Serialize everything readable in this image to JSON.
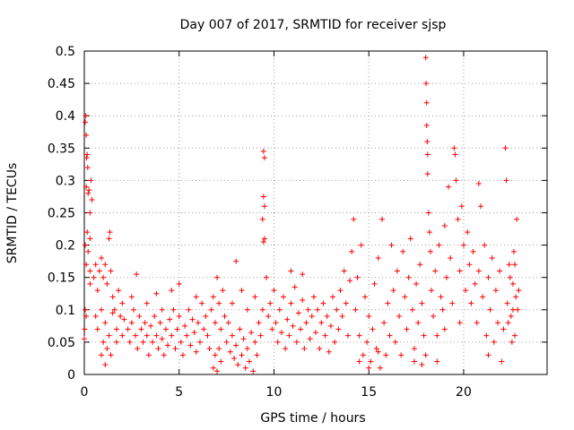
{
  "chart_data": {
    "type": "scatter",
    "title": "Day 007 of 2017, SRMTID for receiver sjsp",
    "xlabel": "GPS time / hours",
    "ylabel": "SRMTID / TECUs",
    "xlim": [
      0,
      24.4
    ],
    "ylim": [
      0,
      0.5
    ],
    "x_ticks": [
      0,
      5,
      10,
      15,
      20
    ],
    "x_tick_labels": [
      "0",
      "5",
      "10",
      "15",
      "20"
    ],
    "y_ticks": [
      0,
      0.05,
      0.1,
      0.15,
      0.2,
      0.25,
      0.3,
      0.35,
      0.4,
      0.45,
      0.5
    ],
    "y_tick_labels": [
      "0",
      "0.05",
      "0.1",
      "0.15",
      "0.2",
      "0.25",
      "0.3",
      "0.35",
      "0.4",
      "0.45",
      "0.5"
    ],
    "grid": true,
    "marker": "+",
    "color": "#ff0000",
    "series": [
      {
        "name": "SRMTID",
        "points": [
          [
            0.05,
            0.39
          ],
          [
            0.08,
            0.4
          ],
          [
            0.1,
            0.37
          ],
          [
            0.12,
            0.335
          ],
          [
            0.15,
            0.34
          ],
          [
            0.18,
            0.32
          ],
          [
            0.1,
            0.29
          ],
          [
            0.2,
            0.28
          ],
          [
            0.25,
            0.285
          ],
          [
            0.3,
            0.25
          ],
          [
            0.35,
            0.3
          ],
          [
            0.4,
            0.27
          ],
          [
            0.15,
            0.22
          ],
          [
            0.05,
            0.2
          ],
          [
            0.3,
            0.21
          ],
          [
            0.2,
            0.19
          ],
          [
            0.1,
            0.17
          ],
          [
            0.3,
            0.16
          ],
          [
            0.05,
            0.1
          ],
          [
            0.1,
            0.09
          ],
          [
            0.0,
            0.055
          ],
          [
            0.02,
            0.07
          ],
          [
            0.3,
            0.14
          ],
          [
            0.5,
            0.15
          ],
          [
            0.6,
            0.17
          ],
          [
            0.7,
            0.13
          ],
          [
            0.8,
            0.16
          ],
          [
            0.9,
            0.18
          ],
          [
            1.0,
            0.15
          ],
          [
            1.1,
            0.17
          ],
          [
            1.2,
            0.14
          ],
          [
            1.3,
            0.21
          ],
          [
            1.35,
            0.22
          ],
          [
            1.4,
            0.16
          ],
          [
            1.5,
            0.12
          ],
          [
            0.6,
            0.09
          ],
          [
            0.7,
            0.07
          ],
          [
            0.9,
            0.1
          ],
          [
            1.0,
            0.05
          ],
          [
            1.1,
            0.08
          ],
          [
            1.2,
            0.04
          ],
          [
            1.3,
            0.06
          ],
          [
            1.4,
            0.03
          ],
          [
            1.6,
            0.1
          ],
          [
            1.7,
            0.07
          ],
          [
            1.8,
            0.13
          ],
          [
            1.9,
            0.09
          ],
          [
            2.0,
            0.11
          ],
          [
            0.9,
            0.03
          ],
          [
            1.1,
            0.015
          ],
          [
            1.5,
            0.095
          ],
          [
            1.7,
            0.05
          ],
          [
            2.0,
            0.06
          ],
          [
            2.1,
            0.085
          ],
          [
            2.3,
            0.07
          ],
          [
            2.4,
            0.05
          ],
          [
            2.5,
            0.08
          ],
          [
            2.6,
            0.1
          ],
          [
            2.7,
            0.06
          ],
          [
            2.8,
            0.04
          ],
          [
            2.9,
            0.09
          ],
          [
            3.0,
            0.07
          ],
          [
            3.1,
            0.05
          ],
          [
            3.2,
            0.08
          ],
          [
            3.3,
            0.06
          ],
          [
            3.4,
            0.03
          ],
          [
            3.5,
            0.075
          ],
          [
            3.6,
            0.05
          ],
          [
            3.7,
            0.09
          ],
          [
            3.8,
            0.06
          ],
          [
            3.9,
            0.04
          ],
          [
            4.0,
            0.08
          ],
          [
            4.1,
            0.055
          ],
          [
            4.2,
            0.03
          ],
          [
            4.3,
            0.07
          ],
          [
            2.75,
            0.155
          ],
          [
            2.5,
            0.12
          ],
          [
            3.3,
            0.11
          ],
          [
            3.8,
            0.125
          ],
          [
            4.1,
            0.1
          ],
          [
            4.4,
            0.045
          ],
          [
            4.5,
            0.085
          ],
          [
            4.6,
            0.06
          ],
          [
            4.7,
            0.1
          ],
          [
            4.8,
            0.04
          ],
          [
            4.9,
            0.07
          ],
          [
            5.0,
            0.09
          ],
          [
            5.1,
            0.05
          ],
          [
            5.2,
            0.03
          ],
          [
            5.3,
            0.075
          ],
          [
            5.4,
            0.06
          ],
          [
            5.5,
            0.1
          ],
          [
            5.6,
            0.045
          ],
          [
            5.7,
            0.085
          ],
          [
            5.8,
            0.065
          ],
          [
            5.9,
            0.035
          ],
          [
            6.0,
            0.08
          ],
          [
            6.1,
            0.05
          ],
          [
            6.2,
            0.11
          ],
          [
            6.3,
            0.07
          ],
          [
            4.6,
            0.13
          ],
          [
            5.0,
            0.14
          ],
          [
            5.9,
            0.12
          ],
          [
            6.4,
            0.09
          ],
          [
            6.5,
            0.06
          ],
          [
            6.6,
            0.04
          ],
          [
            6.7,
            0.1
          ],
          [
            6.8,
            0.12
          ],
          [
            6.9,
            0.08
          ],
          [
            7.0,
            0.15
          ],
          [
            7.1,
            0.11
          ],
          [
            7.2,
            0.07
          ],
          [
            7.3,
            0.13
          ],
          [
            7.4,
            0.09
          ],
          [
            6.8,
            0.01
          ],
          [
            6.9,
            0.03
          ],
          [
            7.0,
            0.005
          ],
          [
            7.1,
            0.04
          ],
          [
            7.2,
            0.02
          ],
          [
            7.5,
            0.05
          ],
          [
            7.6,
            0.08
          ],
          [
            7.7,
            0.035
          ],
          [
            7.8,
            0.06
          ],
          [
            7.9,
            0.025
          ],
          [
            8.0,
            0.045
          ],
          [
            8.1,
            0.015
          ],
          [
            8.2,
            0.07
          ],
          [
            8.3,
            0.03
          ],
          [
            8.4,
            0.055
          ],
          [
            8.5,
            0.01
          ],
          [
            8.6,
            0.04
          ],
          [
            8.7,
            0.02
          ],
          [
            8.8,
            0.065
          ],
          [
            8.9,
            0.005
          ],
          [
            9.0,
            0.05
          ],
          [
            9.1,
            0.03
          ],
          [
            9.2,
            0.08
          ],
          [
            7.8,
            0.11
          ],
          [
            8.0,
            0.175
          ],
          [
            8.3,
            0.13
          ],
          [
            8.6,
            0.1
          ],
          [
            9.0,
            0.12
          ],
          [
            9.3,
            0.06
          ],
          [
            9.4,
            0.1
          ],
          [
            9.45,
            0.345
          ],
          [
            9.5,
            0.335
          ],
          [
            9.45,
            0.275
          ],
          [
            9.5,
            0.26
          ],
          [
            9.4,
            0.24
          ],
          [
            9.45,
            0.205
          ],
          [
            9.5,
            0.21
          ],
          [
            9.6,
            0.15
          ],
          [
            9.7,
            0.09
          ],
          [
            9.8,
            0.11
          ],
          [
            9.9,
            0.07
          ],
          [
            10.0,
            0.13
          ],
          [
            10.1,
            0.08
          ],
          [
            10.2,
            0.05
          ],
          [
            10.3,
            0.1
          ],
          [
            10.4,
            0.065
          ],
          [
            10.5,
            0.12
          ],
          [
            10.6,
            0.04
          ],
          [
            10.7,
            0.085
          ],
          [
            10.8,
            0.06
          ],
          [
            10.9,
            0.11
          ],
          [
            11.0,
            0.075
          ],
          [
            11.1,
            0.135
          ],
          [
            11.2,
            0.05
          ],
          [
            11.3,
            0.095
          ],
          [
            11.4,
            0.07
          ],
          [
            11.5,
            0.115
          ],
          [
            11.6,
            0.04
          ],
          [
            11.7,
            0.08
          ],
          [
            11.8,
            0.1
          ],
          [
            11.9,
            0.055
          ],
          [
            10.9,
            0.16
          ],
          [
            11.5,
            0.155
          ],
          [
            12.0,
            0.09
          ],
          [
            12.1,
            0.12
          ],
          [
            12.2,
            0.065
          ],
          [
            12.3,
            0.1
          ],
          [
            12.4,
            0.04
          ],
          [
            12.5,
            0.08
          ],
          [
            12.6,
            0.11
          ],
          [
            12.7,
            0.06
          ],
          [
            12.8,
            0.09
          ],
          [
            12.9,
            0.035
          ],
          [
            13.0,
            0.075
          ],
          [
            13.1,
            0.12
          ],
          [
            13.2,
            0.05
          ],
          [
            13.3,
            0.1
          ],
          [
            13.4,
            0.07
          ],
          [
            13.5,
            0.13
          ],
          [
            13.6,
            0.09
          ],
          [
            13.7,
            0.16
          ],
          [
            13.8,
            0.11
          ],
          [
            13.9,
            0.06
          ],
          [
            14.0,
            0.145
          ],
          [
            14.1,
            0.19
          ],
          [
            14.2,
            0.24
          ],
          [
            14.3,
            0.1
          ],
          [
            14.4,
            0.15
          ],
          [
            14.5,
            0.06
          ],
          [
            14.6,
            0.2
          ],
          [
            14.7,
            0.03
          ],
          [
            14.8,
            0.12
          ],
          [
            14.9,
            0.05
          ],
          [
            15.0,
            0.09
          ],
          [
            15.1,
            0.02
          ],
          [
            15.2,
            0.07
          ],
          [
            15.3,
            0.14
          ],
          [
            15.4,
            0.04
          ],
          [
            15.5,
            0.18
          ],
          [
            15.6,
            0.01
          ],
          [
            15.7,
            0.24
          ],
          [
            15.8,
            0.08
          ],
          [
            15.9,
            0.03
          ],
          [
            16.0,
            0.11
          ],
          [
            16.1,
            0.06
          ],
          [
            16.2,
            0.2
          ],
          [
            16.3,
            0.13
          ],
          [
            16.4,
            0.05
          ],
          [
            16.5,
            0.16
          ],
          [
            16.6,
            0.09
          ],
          [
            16.7,
            0.03
          ],
          [
            14.5,
            0.02
          ],
          [
            15.0,
            0.01
          ],
          [
            15.5,
            0.035
          ],
          [
            16.8,
            0.19
          ],
          [
            16.9,
            0.12
          ],
          [
            17.0,
            0.07
          ],
          [
            17.1,
            0.15
          ],
          [
            17.2,
            0.21
          ],
          [
            17.3,
            0.1
          ],
          [
            17.4,
            0.04
          ],
          [
            17.5,
            0.14
          ],
          [
            17.6,
            0.08
          ],
          [
            17.7,
            0.17
          ],
          [
            17.8,
            0.11
          ],
          [
            17.9,
            0.06
          ],
          [
            18.0,
            0.49
          ],
          [
            18.02,
            0.45
          ],
          [
            18.05,
            0.42
          ],
          [
            18.05,
            0.385
          ],
          [
            18.08,
            0.36
          ],
          [
            18.1,
            0.34
          ],
          [
            18.1,
            0.31
          ],
          [
            18.15,
            0.25
          ],
          [
            18.2,
            0.22
          ],
          [
            18.25,
            0.19
          ],
          [
            17.4,
            0.02
          ],
          [
            17.8,
            0.015
          ],
          [
            18.0,
            0.03
          ],
          [
            18.3,
            0.13
          ],
          [
            18.4,
            0.09
          ],
          [
            18.5,
            0.16
          ],
          [
            18.6,
            0.06
          ],
          [
            18.7,
            0.2
          ],
          [
            18.8,
            0.12
          ],
          [
            18.9,
            0.1
          ],
          [
            19.0,
            0.23
          ],
          [
            19.1,
            0.15
          ],
          [
            19.2,
            0.29
          ],
          [
            19.3,
            0.18
          ],
          [
            19.4,
            0.11
          ],
          [
            19.5,
            0.35
          ],
          [
            19.55,
            0.34
          ],
          [
            19.6,
            0.3
          ],
          [
            19.7,
            0.24
          ],
          [
            19.8,
            0.16
          ],
          [
            19.9,
            0.26
          ],
          [
            20.0,
            0.2
          ],
          [
            20.1,
            0.13
          ],
          [
            20.2,
            0.22
          ],
          [
            20.3,
            0.17
          ],
          [
            18.6,
            0.02
          ],
          [
            19.0,
            0.07
          ],
          [
            19.8,
            0.08
          ],
          [
            20.4,
            0.11
          ],
          [
            20.5,
            0.19
          ],
          [
            20.6,
            0.14
          ],
          [
            20.7,
            0.08
          ],
          [
            20.8,
            0.16
          ],
          [
            20.9,
            0.26
          ],
          [
            21.0,
            0.12
          ],
          [
            21.1,
            0.2
          ],
          [
            21.2,
            0.06
          ],
          [
            21.3,
            0.15
          ],
          [
            21.4,
            0.1
          ],
          [
            21.5,
            0.18
          ],
          [
            21.6,
            0.05
          ],
          [
            21.7,
            0.13
          ],
          [
            21.8,
            0.08
          ],
          [
            21.9,
            0.16
          ],
          [
            22.0,
            0.02
          ],
          [
            22.1,
            0.07
          ],
          [
            22.2,
            0.35
          ],
          [
            22.25,
            0.3
          ],
          [
            22.3,
            0.11
          ],
          [
            22.4,
            0.17
          ],
          [
            20.8,
            0.295
          ],
          [
            21.3,
            0.03
          ],
          [
            22.5,
            0.09
          ],
          [
            22.6,
            0.14
          ],
          [
            22.7,
            0.06
          ],
          [
            22.8,
            0.24
          ],
          [
            22.75,
            0.12
          ],
          [
            22.65,
            0.19
          ],
          [
            22.55,
            0.05
          ],
          [
            22.85,
            0.1
          ],
          [
            22.45,
            0.15
          ],
          [
            22.35,
            0.08
          ],
          [
            22.9,
            0.13
          ],
          [
            22.7,
            0.17
          ],
          [
            22.6,
            0.1
          ]
        ]
      }
    ]
  }
}
